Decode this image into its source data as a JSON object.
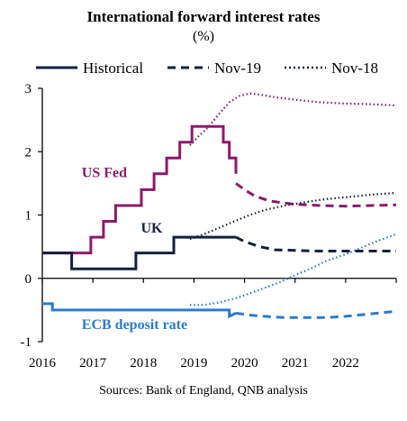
{
  "chart_data": {
    "type": "line",
    "title": "International forward interest rates",
    "subtitle": "(%)",
    "source": "Sources: Bank of England, QNB analysis",
    "xlabel": "",
    "ylabel": "",
    "xlim": [
      2016,
      2023.0
    ],
    "ylim": [
      -1,
      3
    ],
    "x_ticks": [
      "2016",
      "2017",
      "2018",
      "2019",
      "2020",
      "2021",
      "2022"
    ],
    "y_ticks": [
      "3",
      "2",
      "1",
      "0",
      "-1"
    ],
    "grid": false,
    "legend_position": "top",
    "legend": [
      {
        "name": "Historical",
        "style": "solid"
      },
      {
        "name": "Nov-19",
        "style": "dashed"
      },
      {
        "name": "Nov-18",
        "style": "dotted"
      }
    ],
    "colors": {
      "us": "#8b1a6b",
      "uk": "#16213e",
      "ecb": "#2b7bcb",
      "axis": "#000000",
      "text": "#000000"
    },
    "series": [
      {
        "key": "us",
        "group": "US Fed",
        "style": "solid",
        "x": [
          2016.0,
          2016.96,
          2016.96,
          2017.21,
          2017.21,
          2017.45,
          2017.45,
          2017.96,
          2017.96,
          2018.21,
          2018.21,
          2018.46,
          2018.46,
          2018.72,
          2018.72,
          2018.96,
          2018.96,
          2019.58,
          2019.58,
          2019.7,
          2019.7,
          2019.83,
          2019.83
        ],
        "y": [
          0.4,
          0.4,
          0.65,
          0.65,
          0.9,
          0.9,
          1.15,
          1.15,
          1.4,
          1.4,
          1.65,
          1.65,
          1.9,
          1.9,
          2.15,
          2.15,
          2.4,
          2.4,
          2.15,
          2.15,
          1.9,
          1.9,
          1.65
        ]
      },
      {
        "key": "us",
        "group": "US Fed",
        "style": "dashed",
        "x": [
          2019.83,
          2020.0,
          2020.2,
          2020.5,
          2020.8,
          2021.0,
          2021.5,
          2022.0,
          2022.5,
          2023.0
        ],
        "y": [
          1.5,
          1.4,
          1.3,
          1.22,
          1.19,
          1.17,
          1.15,
          1.14,
          1.15,
          1.16
        ]
      },
      {
        "key": "us",
        "group": "US Fed",
        "style": "dotted",
        "x": [
          2018.92,
          2019.1,
          2019.3,
          2019.5,
          2019.7,
          2019.9,
          2020.1,
          2020.3,
          2020.6,
          2021.0,
          2021.5,
          2022.0,
          2022.5,
          2023.0
        ],
        "y": [
          2.1,
          2.25,
          2.4,
          2.6,
          2.78,
          2.88,
          2.92,
          2.9,
          2.86,
          2.82,
          2.78,
          2.76,
          2.75,
          2.73
        ]
      },
      {
        "key": "uk",
        "group": "UK",
        "style": "solid",
        "x": [
          2016.0,
          2016.58,
          2016.58,
          2017.85,
          2017.85,
          2018.6,
          2018.6,
          2019.83
        ],
        "y": [
          0.4,
          0.4,
          0.15,
          0.15,
          0.4,
          0.4,
          0.65,
          0.65
        ]
      },
      {
        "key": "uk",
        "group": "UK",
        "style": "dashed",
        "x": [
          2019.83,
          2020.0,
          2020.3,
          2020.6,
          2021.0,
          2021.5,
          2022.0,
          2023.0
        ],
        "y": [
          0.65,
          0.58,
          0.5,
          0.45,
          0.44,
          0.43,
          0.43,
          0.43
        ]
      },
      {
        "key": "uk",
        "group": "UK",
        "style": "dotted",
        "x": [
          2018.92,
          2019.2,
          2019.5,
          2019.8,
          2020.1,
          2020.4,
          2020.8,
          2021.2,
          2021.6,
          2022.0,
          2022.5,
          2023.0
        ],
        "y": [
          0.62,
          0.7,
          0.8,
          0.9,
          1.0,
          1.08,
          1.15,
          1.2,
          1.25,
          1.28,
          1.32,
          1.35
        ]
      },
      {
        "key": "ecb",
        "group": "ECB deposit rate",
        "style": "solid",
        "x": [
          2016.0,
          2016.2,
          2016.2,
          2019.7,
          2019.7,
          2019.83
        ],
        "y": [
          -0.4,
          -0.4,
          -0.5,
          -0.5,
          -0.6,
          -0.55
        ]
      },
      {
        "key": "ecb",
        "group": "ECB deposit rate",
        "style": "dashed",
        "x": [
          2019.83,
          2020.1,
          2020.4,
          2020.8,
          2021.2,
          2021.6,
          2022.0,
          2022.5,
          2023.0
        ],
        "y": [
          -0.55,
          -0.58,
          -0.6,
          -0.62,
          -0.62,
          -0.62,
          -0.6,
          -0.56,
          -0.52
        ]
      },
      {
        "key": "ecb",
        "group": "ECB deposit rate",
        "style": "dotted",
        "x": [
          2018.92,
          2019.2,
          2019.5,
          2019.8,
          2020.1,
          2020.4,
          2020.7,
          2021.0,
          2021.3,
          2021.6,
          2022.0,
          2022.3,
          2022.6,
          2023.0
        ],
        "y": [
          -0.42,
          -0.42,
          -0.38,
          -0.32,
          -0.24,
          -0.15,
          -0.06,
          0.05,
          0.15,
          0.27,
          0.38,
          0.48,
          0.58,
          0.7
        ]
      }
    ],
    "series_labels": [
      {
        "text": "US Fed",
        "key": "us",
        "x": 2016.78,
        "y": 1.6
      },
      {
        "text": "UK",
        "key": "uk",
        "x": 2017.95,
        "y": 0.72
      },
      {
        "text": "ECB deposit rate",
        "key": "ecb",
        "x": 2016.78,
        "y": -0.8
      }
    ]
  }
}
